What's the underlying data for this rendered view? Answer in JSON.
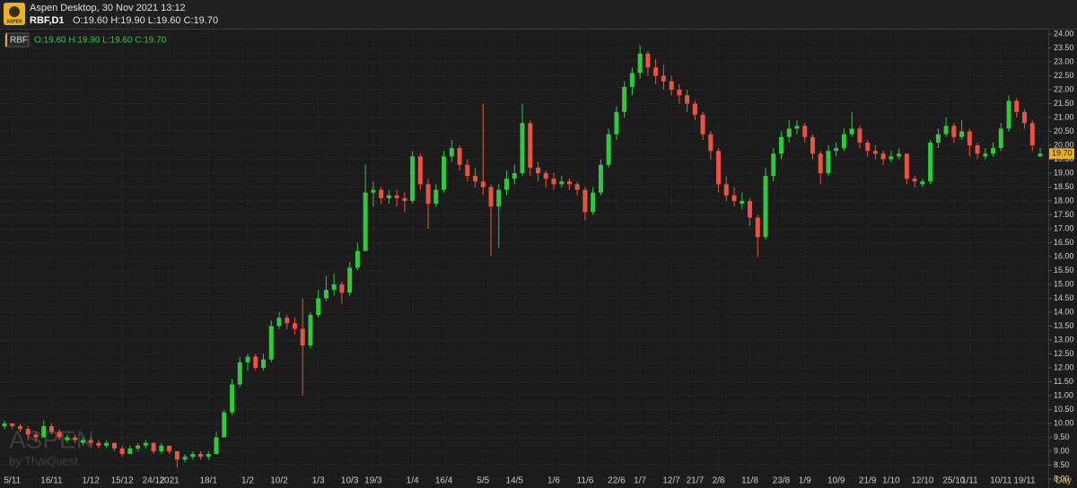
{
  "app_title": "Aspen Desktop, 30 Nov 2021 13:12",
  "logo": "ASPEN",
  "watermark": "ASPEN",
  "watermark_sub": "by ThaiQuest",
  "chart_data": {
    "type": "candlestick",
    "symbol": "RBF",
    "symbol_period": "RBF,D1",
    "ohlc_text": "O:19.60 H:19.90 L:19.60 C:19.70",
    "x_unit": "Day",
    "up_color": "#2fc83e",
    "down_color": "#e8553f",
    "doji_color": "#e8a93a",
    "grid": true,
    "last_price": {
      "value": 19.7,
      "label": "19.70"
    },
    "categories": [
      null,
      "5/11",
      null,
      null,
      null,
      null,
      "16/11",
      null,
      null,
      null,
      null,
      "1/12",
      null,
      null,
      null,
      "15/12",
      null,
      null,
      null,
      "24/12",
      null,
      "2021",
      null,
      null,
      null,
      null,
      "18/1",
      null,
      null,
      null,
      null,
      "1/2",
      null,
      null,
      null,
      "10/2",
      null,
      null,
      null,
      null,
      "1/3",
      null,
      null,
      null,
      "10/3",
      null,
      null,
      "19/3",
      null,
      null,
      null,
      null,
      "1/4",
      null,
      null,
      null,
      "16/4",
      null,
      null,
      null,
      null,
      "5/5",
      null,
      null,
      null,
      "14/5",
      null,
      null,
      null,
      null,
      "1/6",
      null,
      null,
      null,
      "11/6",
      null,
      null,
      null,
      "22/6",
      null,
      null,
      "1/7",
      null,
      null,
      null,
      "12/7",
      null,
      null,
      "21/7",
      null,
      null,
      "2/8",
      null,
      null,
      null,
      "11/8",
      null,
      null,
      null,
      "23/8",
      null,
      null,
      "1/9",
      null,
      null,
      null,
      "10/9",
      null,
      null,
      null,
      "21/9",
      null,
      null,
      "1/10",
      null,
      null,
      null,
      "12/10",
      null,
      null,
      null,
      "25/10",
      null,
      "1/11",
      null,
      null,
      null,
      "10/11",
      null,
      null,
      "19/11",
      null,
      null
    ],
    "ohlc": [
      [
        9.9,
        10.1,
        9.8,
        10.0
      ],
      [
        10.0,
        10.0,
        9.8,
        9.9
      ],
      [
        9.9,
        10.0,
        9.7,
        9.8
      ],
      [
        9.8,
        9.9,
        9.4,
        9.6
      ],
      [
        9.6,
        9.7,
        9.3,
        9.5
      ],
      [
        9.5,
        10.1,
        9.5,
        9.9
      ],
      [
        9.9,
        10.0,
        9.6,
        9.7
      ],
      [
        9.7,
        9.8,
        9.4,
        9.5
      ],
      [
        9.4,
        9.6,
        9.3,
        9.5
      ],
      [
        9.5,
        9.6,
        9.3,
        9.4
      ],
      [
        9.3,
        9.5,
        9.2,
        9.4
      ],
      [
        9.4,
        9.5,
        9.2,
        9.3
      ],
      [
        9.3,
        9.4,
        9.1,
        9.2
      ],
      [
        9.2,
        9.4,
        9.1,
        9.3
      ],
      [
        9.3,
        9.3,
        9.0,
        9.1
      ],
      [
        9.1,
        9.2,
        8.8,
        8.9
      ],
      [
        8.9,
        9.2,
        8.9,
        9.1
      ],
      [
        9.1,
        9.3,
        9.0,
        9.2
      ],
      [
        9.2,
        9.4,
        9.1,
        9.3
      ],
      [
        9.3,
        9.3,
        8.9,
        9.0
      ],
      [
        9.0,
        9.3,
        8.9,
        9.2
      ],
      [
        9.2,
        9.2,
        8.9,
        9.0
      ],
      [
        9.0,
        9.0,
        8.4,
        8.7
      ],
      [
        8.7,
        8.9,
        8.6,
        8.8
      ],
      [
        8.8,
        9.0,
        8.7,
        8.9
      ],
      [
        8.9,
        9.0,
        8.7,
        8.8
      ],
      [
        8.8,
        9.0,
        8.7,
        8.9
      ],
      [
        8.9,
        9.7,
        8.9,
        9.5
      ],
      [
        9.5,
        10.5,
        9.5,
        10.4
      ],
      [
        10.4,
        11.6,
        10.3,
        11.4
      ],
      [
        11.4,
        12.4,
        11.3,
        12.2
      ],
      [
        12.2,
        12.5,
        11.9,
        12.4
      ],
      [
        12.4,
        12.5,
        11.9,
        12.0
      ],
      [
        12.0,
        12.5,
        11.9,
        12.3
      ],
      [
        12.3,
        13.7,
        12.2,
        13.5
      ],
      [
        13.5,
        14.0,
        13.4,
        13.8
      ],
      [
        13.8,
        13.9,
        13.4,
        13.6
      ],
      [
        13.6,
        13.8,
        13.2,
        13.4
      ],
      [
        13.4,
        14.5,
        11.0,
        12.8
      ],
      [
        12.8,
        14.0,
        12.7,
        13.9
      ],
      [
        13.9,
        14.8,
        13.8,
        14.5
      ],
      [
        14.5,
        15.3,
        14.4,
        14.8
      ],
      [
        14.8,
        15.4,
        14.6,
        15.0
      ],
      [
        15.0,
        15.1,
        14.3,
        14.7
      ],
      [
        14.7,
        15.8,
        14.6,
        15.6
      ],
      [
        15.6,
        16.5,
        15.5,
        16.2
      ],
      [
        16.2,
        19.3,
        16.2,
        18.3
      ],
      [
        18.3,
        18.7,
        17.8,
        18.4
      ],
      [
        18.4,
        18.5,
        17.9,
        18.1
      ],
      [
        18.1,
        18.4,
        17.9,
        18.2
      ],
      [
        18.2,
        18.4,
        17.8,
        18.1
      ],
      [
        18.1,
        18.3,
        17.6,
        18.0
      ],
      [
        18.0,
        19.8,
        17.9,
        19.6
      ],
      [
        19.6,
        19.7,
        18.4,
        18.6
      ],
      [
        18.6,
        18.8,
        17.0,
        17.9
      ],
      [
        17.9,
        18.6,
        17.8,
        18.4
      ],
      [
        18.4,
        19.8,
        18.3,
        19.6
      ],
      [
        19.6,
        20.2,
        19.4,
        19.9
      ],
      [
        19.9,
        20.0,
        19.1,
        19.3
      ],
      [
        19.3,
        19.5,
        18.7,
        18.9
      ],
      [
        18.9,
        19.2,
        18.5,
        18.7
      ],
      [
        18.7,
        21.5,
        18.2,
        18.5
      ],
      [
        18.5,
        18.6,
        16.0,
        17.8
      ],
      [
        17.8,
        18.6,
        16.3,
        18.4
      ],
      [
        18.4,
        19.1,
        18.2,
        18.8
      ],
      [
        18.8,
        19.3,
        18.6,
        19.0
      ],
      [
        19.0,
        21.5,
        18.9,
        20.8
      ],
      [
        20.8,
        20.9,
        18.9,
        19.2
      ],
      [
        19.2,
        19.4,
        18.7,
        19.0
      ],
      [
        19.0,
        19.1,
        18.5,
        18.8
      ],
      [
        18.8,
        19.0,
        18.4,
        18.6
      ],
      [
        18.6,
        18.9,
        18.5,
        18.7
      ],
      [
        18.7,
        18.8,
        18.4,
        18.6
      ],
      [
        18.6,
        18.7,
        18.2,
        18.4
      ],
      [
        18.4,
        18.5,
        17.3,
        17.6
      ],
      [
        17.6,
        18.5,
        17.5,
        18.3
      ],
      [
        18.3,
        19.5,
        18.2,
        19.3
      ],
      [
        19.3,
        20.6,
        19.2,
        20.4
      ],
      [
        20.4,
        21.4,
        20.2,
        21.2
      ],
      [
        21.2,
        22.3,
        21.0,
        22.1
      ],
      [
        22.1,
        22.8,
        21.8,
        22.6
      ],
      [
        22.6,
        23.6,
        22.4,
        23.3
      ],
      [
        23.3,
        23.4,
        22.5,
        22.8
      ],
      [
        22.8,
        23.1,
        22.2,
        22.5
      ],
      [
        22.5,
        22.9,
        22.0,
        22.3
      ],
      [
        22.3,
        22.5,
        21.8,
        22.0
      ],
      [
        22.0,
        22.2,
        21.5,
        21.8
      ],
      [
        21.8,
        22.0,
        21.2,
        21.5
      ],
      [
        21.5,
        21.6,
        20.9,
        21.1
      ],
      [
        21.1,
        21.2,
        20.2,
        20.4
      ],
      [
        20.4,
        20.5,
        19.5,
        19.8
      ],
      [
        19.8,
        19.9,
        18.3,
        18.6
      ],
      [
        18.6,
        18.9,
        18.0,
        18.2
      ],
      [
        18.2,
        18.5,
        17.8,
        18.0
      ],
      [
        17.9,
        18.3,
        17.7,
        18.0
      ],
      [
        18.0,
        18.1,
        17.1,
        17.4
      ],
      [
        17.4,
        17.5,
        16.0,
        16.7
      ],
      [
        16.7,
        19.2,
        16.6,
        18.9
      ],
      [
        18.9,
        19.9,
        18.7,
        19.7
      ],
      [
        19.7,
        20.5,
        19.5,
        20.3
      ],
      [
        20.3,
        20.9,
        20.1,
        20.6
      ],
      [
        20.6,
        20.9,
        20.4,
        20.7
      ],
      [
        20.7,
        20.8,
        20.1,
        20.3
      ],
      [
        20.3,
        20.4,
        19.5,
        19.7
      ],
      [
        19.7,
        19.8,
        18.6,
        19.0
      ],
      [
        19.0,
        20.0,
        18.9,
        19.8
      ],
      [
        19.8,
        20.1,
        19.6,
        19.9
      ],
      [
        19.9,
        20.6,
        19.8,
        20.4
      ],
      [
        20.4,
        21.2,
        20.3,
        20.6
      ],
      [
        20.6,
        20.7,
        19.9,
        20.1
      ],
      [
        20.1,
        20.2,
        19.6,
        19.8
      ],
      [
        19.8,
        20.0,
        19.5,
        19.7
      ],
      [
        19.7,
        19.8,
        19.3,
        19.5
      ],
      [
        19.5,
        19.8,
        19.4,
        19.6
      ],
      [
        19.6,
        19.9,
        19.5,
        19.7
      ],
      [
        19.7,
        19.7,
        18.6,
        18.8
      ],
      [
        18.8,
        18.9,
        18.5,
        18.7
      ],
      [
        18.6,
        18.8,
        18.5,
        18.7
      ],
      [
        18.7,
        20.2,
        18.6,
        20.1
      ],
      [
        20.1,
        20.6,
        19.9,
        20.4
      ],
      [
        20.4,
        21.0,
        20.3,
        20.7
      ],
      [
        20.7,
        20.8,
        20.1,
        20.3
      ],
      [
        20.3,
        20.9,
        20.2,
        20.5
      ],
      [
        20.5,
        20.6,
        19.6,
        20.0
      ],
      [
        20.0,
        20.1,
        19.5,
        19.7
      ],
      [
        19.6,
        19.9,
        19.5,
        19.7
      ],
      [
        19.7,
        20.1,
        19.6,
        19.9
      ],
      [
        19.9,
        20.8,
        19.8,
        20.6
      ],
      [
        20.6,
        21.8,
        20.5,
        21.6
      ],
      [
        21.6,
        21.7,
        21.0,
        21.2
      ],
      [
        21.2,
        21.3,
        20.6,
        20.8
      ],
      [
        20.8,
        20.9,
        19.8,
        20.0
      ],
      [
        19.6,
        19.9,
        19.6,
        19.7
      ]
    ],
    "ylim": [
      8,
      24
    ],
    "yticks": [
      {
        "value": 8,
        "label": "8.00"
      },
      {
        "value": 8.5,
        "label": "8.50"
      },
      {
        "value": 9,
        "label": "9.00"
      },
      {
        "value": 9.5,
        "label": "9.50"
      },
      {
        "value": 10,
        "label": "10.00"
      },
      {
        "value": 10.5,
        "label": "10.50"
      },
      {
        "value": 11,
        "label": "11.00"
      },
      {
        "value": 11.5,
        "label": "11.50"
      },
      {
        "value": 12,
        "label": "12.00"
      },
      {
        "value": 12.5,
        "label": "12.50"
      },
      {
        "value": 13,
        "label": "13.00"
      },
      {
        "value": 13.5,
        "label": "13.50"
      },
      {
        "value": 14,
        "label": "14.00"
      },
      {
        "value": 14.5,
        "label": "14.50"
      },
      {
        "value": 15,
        "label": "15.00"
      },
      {
        "value": 15.5,
        "label": "15.50"
      },
      {
        "value": 16,
        "label": "16.00"
      },
      {
        "value": 16.5,
        "label": "16.50"
      },
      {
        "value": 17,
        "label": "17.00"
      },
      {
        "value": 17.5,
        "label": "17.50"
      },
      {
        "value": 18,
        "label": "18.00"
      },
      {
        "value": 18.5,
        "label": "18.50"
      },
      {
        "value": 19,
        "label": "19.00"
      },
      {
        "value": 19.5,
        "label": "19.50"
      },
      {
        "value": 20,
        "label": "20.00"
      },
      {
        "value": 20.5,
        "label": "20.50"
      },
      {
        "value": 21,
        "label": "21.00"
      },
      {
        "value": 21.5,
        "label": "21.50"
      },
      {
        "value": 22,
        "label": "22.00"
      },
      {
        "value": 22.5,
        "label": "22.50"
      },
      {
        "value": 23,
        "label": "23.00"
      },
      {
        "value": 23.5,
        "label": "23.50"
      },
      {
        "value": 24,
        "label": "24.00"
      }
    ]
  }
}
